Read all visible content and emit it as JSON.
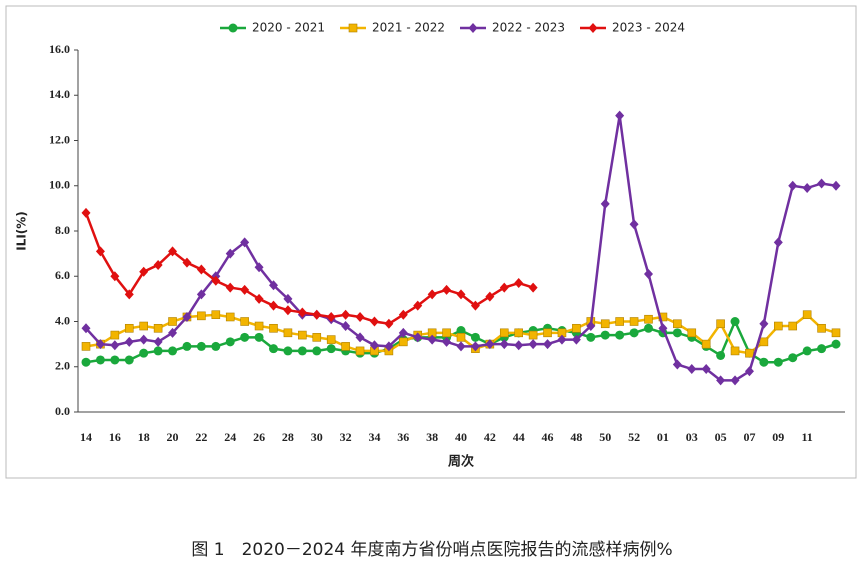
{
  "chart_data": {
    "type": "line",
    "y_label": "ILI(%)",
    "x_label": "周次",
    "caption": "图 1　2020－2024 年度南方省份哨点医院报告的流感样病例%",
    "categories": [
      "14",
      null,
      "16",
      null,
      "18",
      null,
      "20",
      null,
      "22",
      null,
      "24",
      null,
      "26",
      null,
      "28",
      null,
      "30",
      null,
      "32",
      null,
      "34",
      null,
      "36",
      null,
      "38",
      null,
      "40",
      null,
      "42",
      null,
      "44",
      null,
      "46",
      null,
      "48",
      null,
      "50",
      null,
      "52",
      null,
      "01",
      null,
      "03",
      null,
      "05",
      null,
      "07",
      null,
      "09",
      null,
      "11",
      null,
      null
    ],
    "ylim": [
      0,
      16
    ],
    "yticks": [
      {
        "value": 0,
        "label": "0.0"
      },
      {
        "value": 2,
        "label": "2.0"
      },
      {
        "value": 4,
        "label": "4.0"
      },
      {
        "value": 6,
        "label": "6.0"
      },
      {
        "value": 8,
        "label": "8.0"
      },
      {
        "value": 10,
        "label": "10.0"
      },
      {
        "value": 12,
        "label": "12.0"
      },
      {
        "value": 14,
        "label": "14.0"
      },
      {
        "value": 16,
        "label": "16.0"
      }
    ],
    "grid": false,
    "legend": "top",
    "series": [
      {
        "name": "2020 - 2021",
        "color": "#1aa83c",
        "marker": "circle",
        "values": [
          2.2,
          2.3,
          2.3,
          2.3,
          2.6,
          2.7,
          2.7,
          2.9,
          2.9,
          2.9,
          3.1,
          3.3,
          3.3,
          2.8,
          2.7,
          2.7,
          2.7,
          2.8,
          2.7,
          2.6,
          2.6,
          2.8,
          3.2,
          3.3,
          3.3,
          3.3,
          3.6,
          3.3,
          3.0,
          3.3,
          3.5,
          3.6,
          3.7,
          3.6,
          3.5,
          3.3,
          3.4,
          3.4,
          3.5,
          3.7,
          3.5,
          3.5,
          3.3,
          2.9,
          2.5,
          4.0,
          2.6,
          2.2,
          2.2,
          2.4,
          2.7,
          2.8,
          3.0
        ]
      },
      {
        "name": "2021 - 2022",
        "color": "#f2b400",
        "marker": "square",
        "values": [
          2.9,
          3.0,
          3.4,
          3.7,
          3.8,
          3.7,
          4.0,
          4.2,
          4.25,
          4.3,
          4.2,
          4.0,
          3.8,
          3.7,
          3.5,
          3.4,
          3.3,
          3.2,
          2.9,
          2.7,
          2.7,
          2.7,
          3.1,
          3.4,
          3.5,
          3.5,
          3.3,
          2.8,
          3.0,
          3.5,
          3.5,
          3.4,
          3.5,
          3.5,
          3.7,
          4.0,
          3.9,
          4.0,
          4.0,
          4.1,
          4.2,
          3.9,
          3.5,
          3.0,
          3.9,
          2.7,
          2.6,
          3.1,
          3.8,
          3.8,
          4.3,
          3.7,
          3.5
        ]
      },
      {
        "name": "2022 - 2023",
        "color": "#7030a0",
        "marker": "diamond",
        "values": [
          3.7,
          3.0,
          2.95,
          3.1,
          3.2,
          3.1,
          3.5,
          4.2,
          5.2,
          6.0,
          7.0,
          7.5,
          6.4,
          5.6,
          5.0,
          4.3,
          4.3,
          4.1,
          3.8,
          3.3,
          2.95,
          2.9,
          3.5,
          3.3,
          3.2,
          3.1,
          2.9,
          2.9,
          3.0,
          3.0,
          2.95,
          3.0,
          3.0,
          3.2,
          3.2,
          3.8,
          9.2,
          13.1,
          8.3,
          6.1,
          3.7,
          2.1,
          1.9,
          1.9,
          1.4,
          1.4,
          1.8,
          3.9,
          7.5,
          10.0,
          9.9,
          10.1,
          10.0
        ]
      },
      {
        "name": "2023 - 2024",
        "color": "#e01010",
        "marker": "diamond",
        "values": [
          8.8,
          7.1,
          6.0,
          5.2,
          6.2,
          6.5,
          7.1,
          6.6,
          6.3,
          5.8,
          5.5,
          5.4,
          5.0,
          4.7,
          4.5,
          4.4,
          4.3,
          4.2,
          4.3,
          4.2,
          4.0,
          3.9,
          4.3,
          4.7,
          5.2,
          5.4,
          5.2,
          4.7,
          5.1,
          5.5,
          5.7,
          5.5,
          null,
          null,
          null,
          null,
          null,
          null,
          null,
          null,
          null,
          null,
          null,
          null,
          null,
          null,
          null,
          null,
          null,
          null,
          null,
          null,
          null
        ]
      }
    ]
  }
}
